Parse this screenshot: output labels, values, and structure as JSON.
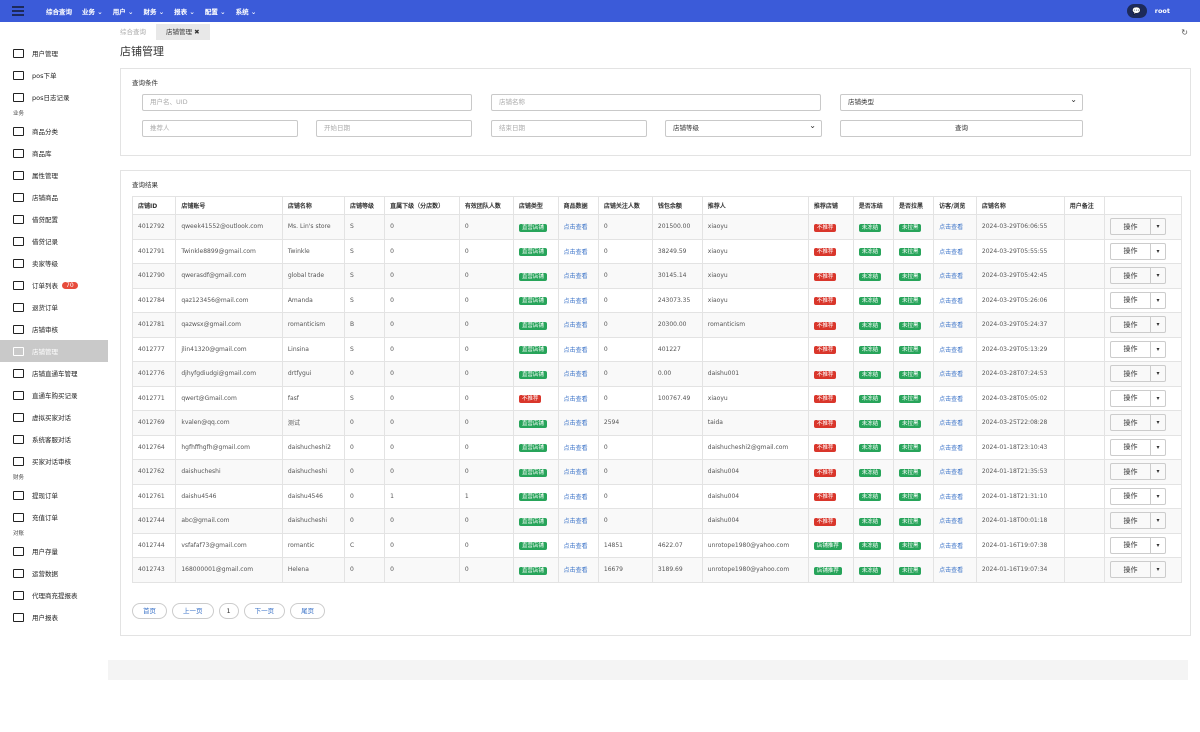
{
  "topbar": {
    "nav": [
      "综合查询",
      "业务 ⌄",
      "用户 ⌄",
      "财务 ⌄",
      "报表 ⌄",
      "配置 ⌄",
      "系统 ⌄"
    ],
    "user": "root",
    "chat_icon": "chat-icon"
  },
  "sidebar": [
    {
      "t": "item",
      "label": "用户管理"
    },
    {
      "t": "item",
      "label": "pos下单"
    },
    {
      "t": "item",
      "label": "pos日志记录"
    },
    {
      "t": "sec",
      "label": "业务"
    },
    {
      "t": "item",
      "label": "商品分类"
    },
    {
      "t": "item",
      "label": "商品库"
    },
    {
      "t": "item",
      "label": "属性管理"
    },
    {
      "t": "item",
      "label": "店铺商品"
    },
    {
      "t": "item",
      "label": "借贷配置"
    },
    {
      "t": "item",
      "label": "借贷记录"
    },
    {
      "t": "item",
      "label": "卖家等级"
    },
    {
      "t": "item",
      "label": "订单列表",
      "badge": "70"
    },
    {
      "t": "item",
      "label": "退货订单"
    },
    {
      "t": "item",
      "label": "店铺审核"
    },
    {
      "t": "item",
      "label": "店铺管理",
      "active": true
    },
    {
      "t": "item",
      "label": "店铺直通车管理"
    },
    {
      "t": "item",
      "label": "直通车购买记录"
    },
    {
      "t": "item",
      "label": "虚拟买家对话"
    },
    {
      "t": "item",
      "label": "系统客服对话"
    },
    {
      "t": "item",
      "label": "买家对话审核"
    },
    {
      "t": "sec",
      "label": "财务"
    },
    {
      "t": "item",
      "label": "提现订单"
    },
    {
      "t": "item",
      "label": "充值订单"
    },
    {
      "t": "sec",
      "label": "对账"
    },
    {
      "t": "item",
      "label": "用户存量"
    },
    {
      "t": "item",
      "label": "运营数据"
    },
    {
      "t": "item",
      "label": "代理商充提报表"
    },
    {
      "t": "item",
      "label": "用户报表"
    }
  ],
  "tabs": [
    "综合查询",
    "店铺管理 ✖"
  ],
  "page_title": "店铺管理",
  "query": {
    "title": "查询条件",
    "user_ph": "用户名、UID",
    "shop_ph": "店铺名称",
    "shop_type": "店铺类型",
    "referrer_ph": "推荐人",
    "start_ph": "开始日期",
    "end_ph": "结束日期",
    "level": "店铺等级",
    "search_btn": "查询"
  },
  "results": {
    "title": "查询结果",
    "headers": [
      "店铺ID",
      "店铺账号",
      "店铺名称",
      "店铺等级",
      "直属下级（分店数）",
      "有效团队人数",
      "店铺类型",
      "商品数据",
      "店铺关注人数",
      "钱包余额",
      "推荐人",
      "推荐店铺",
      "是否冻结",
      "是否拉黑",
      "访客/浏览",
      "店铺名称",
      "用户备注",
      ""
    ],
    "rows": [
      [
        "4012792",
        "qweek41552@outlook.com",
        "Ms. Lin's store",
        "S",
        "0",
        "0",
        "直营店铺",
        "点击查看",
        "0",
        "201500.00",
        "xiaoyu",
        "不推荐",
        "未冻结",
        "未拉黑",
        "点击查看",
        "2024-03-29T06:06:55"
      ],
      [
        "4012791",
        "Twinkle8899@gmail.com",
        "Twinkle",
        "S",
        "0",
        "0",
        "直营店铺",
        "点击查看",
        "0",
        "38249.59",
        "xiaoyu",
        "不推荐",
        "未冻结",
        "未拉黑",
        "点击查看",
        "2024-03-29T05:55:55"
      ],
      [
        "4012790",
        "qwerasdf@gmail.com",
        "global trade",
        "S",
        "0",
        "0",
        "直营店铺",
        "点击查看",
        "0",
        "30145.14",
        "xiaoyu",
        "不推荐",
        "未冻结",
        "未拉黑",
        "点击查看",
        "2024-03-29T05:42:45"
      ],
      [
        "4012784",
        "qaz123456@mail.com",
        "Amanda",
        "S",
        "0",
        "0",
        "直营店铺",
        "点击查看",
        "0",
        "243073.35",
        "xiaoyu",
        "不推荐",
        "未冻结",
        "未拉黑",
        "点击查看",
        "2024-03-29T05:26:06"
      ],
      [
        "4012781",
        "qazwsx@gmail.com",
        "romanticism",
        "B",
        "0",
        "0",
        "直营店铺",
        "点击查看",
        "0",
        "20300.00",
        "romanticism",
        "不推荐",
        "未冻结",
        "未拉黑",
        "点击查看",
        "2024-03-29T05:24:37"
      ],
      [
        "4012777",
        "jlin41320@gmail.com",
        "Linsina",
        "S",
        "0",
        "0",
        "直营店铺",
        "点击查看",
        "0",
        "401227",
        "",
        "不推荐",
        "未冻结",
        "未拉黑",
        "点击查看",
        "2024-03-29T05:13:29"
      ],
      [
        "4012776",
        "djhyfgdiudgi@gmail.com",
        "drtfygui",
        "0",
        "0",
        "0",
        "直营店铺",
        "点击查看",
        "0",
        "0.00",
        "daishu001",
        "不推荐",
        "未冻结",
        "未拉黑",
        "点击查看",
        "2024-03-28T07:24:53"
      ],
      [
        "4012771",
        "qwert@Gmail.com",
        "fasf",
        "S",
        "0",
        "0",
        "不推荐",
        "点击查看",
        "0",
        "100767.49",
        "xiaoyu",
        "不推荐",
        "未冻结",
        "未拉黑",
        "点击查看",
        "2024-03-28T05:05:02"
      ],
      [
        "4012769",
        "kvalen@qq.com",
        "测试",
        "0",
        "0",
        "0",
        "直营店铺",
        "点击查看",
        "2594",
        "",
        "taida",
        "不推荐",
        "未冻结",
        "未拉黑",
        "点击查看",
        "2024-03-25T22:08:28"
      ],
      [
        "4012764",
        "hgfhffhgfh@gmail.com",
        "daishucheshi2",
        "0",
        "0",
        "0",
        "直营店铺",
        "点击查看",
        "0",
        "",
        "daishucheshi2@gmail.com",
        "不推荐",
        "未冻结",
        "未拉黑",
        "点击查看",
        "2024-01-18T23:10:43"
      ],
      [
        "4012762",
        "daishucheshi",
        "daishucheshi",
        "0",
        "0",
        "0",
        "直营店铺",
        "点击查看",
        "0",
        "",
        "daishu004",
        "不推荐",
        "未冻结",
        "未拉黑",
        "点击查看",
        "2024-01-18T21:35:53"
      ],
      [
        "4012761",
        "daishu4546",
        "daishu4546",
        "0",
        "1",
        "1",
        "直营店铺",
        "点击查看",
        "0",
        "",
        "daishu004",
        "不推荐",
        "未冻结",
        "未拉黑",
        "点击查看",
        "2024-01-18T21:31:10"
      ],
      [
        "4012744",
        "abc@gmail.com",
        "daishucheshi",
        "0",
        "0",
        "0",
        "直营店铺",
        "点击查看",
        "0",
        "",
        "daishu004",
        "不推荐",
        "未冻结",
        "未拉黑",
        "点击查看",
        "2024-01-18T00:01:18"
      ],
      [
        "4012744",
        "vsfafaf73@gmail.com",
        "romantic",
        "C",
        "0",
        "0",
        "直营店铺",
        "点击查看",
        "14851",
        "4622.07",
        "unrotope1980@yahoo.com",
        "店铺推荐",
        "未冻结",
        "未拉黑",
        "点击查看",
        "2024-01-16T19:07:38"
      ],
      [
        "4012743",
        "168000001@gmail.com",
        "Helena",
        "0",
        "0",
        "0",
        "直营店铺",
        "点击查看",
        "16679",
        "3189.69",
        "unrotope1980@yahoo.com",
        "店铺推荐",
        "未冻结",
        "未拉黑",
        "点击查看",
        "2024-01-16T19:07:34"
      ]
    ],
    "op_label": "操作"
  },
  "pager": [
    "首页",
    "上一页",
    "1",
    "下一页",
    "尾页"
  ]
}
